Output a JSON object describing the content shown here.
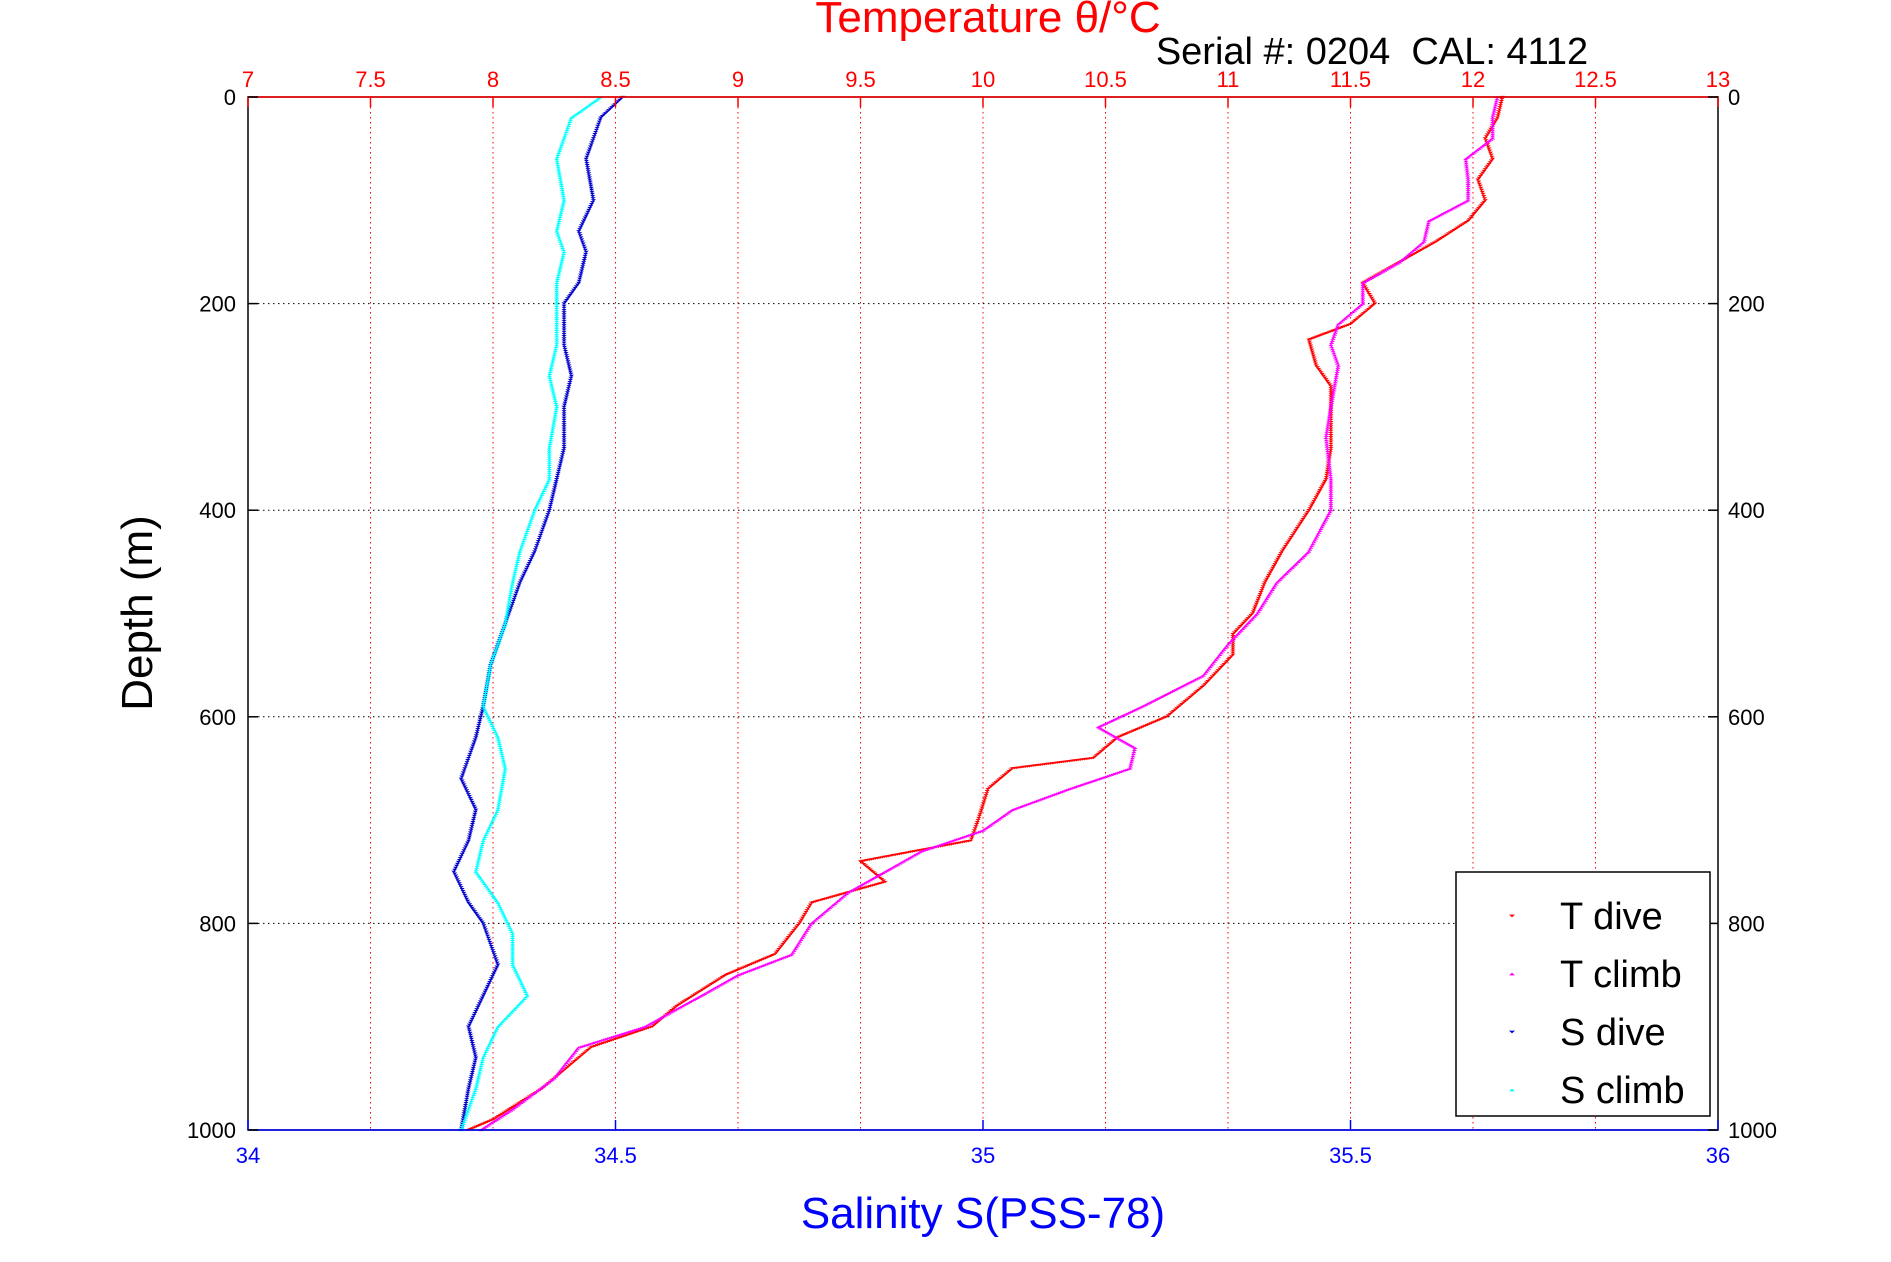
{
  "chart_data": {
    "type": "scatter",
    "title": "Temperature θ/°C",
    "subtitle": "Serial #: 0204  CAL: 4112",
    "xlabel_top": "Temperature θ/°C",
    "xlabel_bottom": "Salinity S(PSS-78)",
    "ylabel": "Depth (m)",
    "temperature_axis": {
      "range": [
        7,
        13
      ],
      "ticks": [
        "7",
        "7.5",
        "8",
        "8.5",
        "9",
        "9.5",
        "10",
        "10.5",
        "11",
        "11.5",
        "12",
        "12.5",
        "13"
      ],
      "color": "#ff0000"
    },
    "salinity_axis": {
      "range": [
        34,
        36
      ],
      "ticks": [
        "34",
        "34.5",
        "35",
        "35.5",
        "36"
      ],
      "color": "#0000ff"
    },
    "depth_axis": {
      "range": [
        0,
        1000
      ],
      "reversed": true,
      "ticks": [
        "0",
        "200",
        "400",
        "600",
        "800",
        "1000"
      ]
    },
    "grid": true,
    "legend": {
      "placement": "bottom-right"
    },
    "series": [
      {
        "name": "T dive",
        "axis": "temperature",
        "color": "#ff0000",
        "marker": "triangle-down",
        "points": [
          [
            12.12,
            0
          ],
          [
            12.1,
            20
          ],
          [
            12.05,
            40
          ],
          [
            12.08,
            60
          ],
          [
            12.02,
            80
          ],
          [
            12.05,
            100
          ],
          [
            11.98,
            120
          ],
          [
            11.85,
            140
          ],
          [
            11.7,
            160
          ],
          [
            11.55,
            180
          ],
          [
            11.6,
            200
          ],
          [
            11.5,
            220
          ],
          [
            11.33,
            235
          ],
          [
            11.36,
            260
          ],
          [
            11.42,
            280
          ],
          [
            11.42,
            300
          ],
          [
            11.42,
            340
          ],
          [
            11.4,
            370
          ],
          [
            11.33,
            400
          ],
          [
            11.22,
            440
          ],
          [
            11.15,
            470
          ],
          [
            11.1,
            500
          ],
          [
            11.02,
            520
          ],
          [
            11.02,
            540
          ],
          [
            10.9,
            570
          ],
          [
            10.75,
            600
          ],
          [
            10.55,
            620
          ],
          [
            10.45,
            640
          ],
          [
            10.12,
            650
          ],
          [
            10.02,
            670
          ],
          [
            9.98,
            700
          ],
          [
            9.95,
            720
          ],
          [
            9.5,
            740
          ],
          [
            9.6,
            760
          ],
          [
            9.3,
            780
          ],
          [
            9.25,
            800
          ],
          [
            9.15,
            830
          ],
          [
            8.95,
            850
          ],
          [
            8.75,
            880
          ],
          [
            8.65,
            900
          ],
          [
            8.4,
            920
          ],
          [
            8.2,
            960
          ],
          [
            8.0,
            990
          ],
          [
            7.9,
            1000
          ]
        ]
      },
      {
        "name": "T climb",
        "axis": "temperature",
        "color": "#ff00ff",
        "marker": "triangle-up",
        "points": [
          [
            12.1,
            0
          ],
          [
            12.08,
            20
          ],
          [
            12.08,
            40
          ],
          [
            11.97,
            60
          ],
          [
            11.98,
            80
          ],
          [
            11.98,
            100
          ],
          [
            11.82,
            120
          ],
          [
            11.8,
            140
          ],
          [
            11.7,
            160
          ],
          [
            11.55,
            180
          ],
          [
            11.55,
            200
          ],
          [
            11.45,
            220
          ],
          [
            11.42,
            240
          ],
          [
            11.45,
            260
          ],
          [
            11.42,
            300
          ],
          [
            11.4,
            330
          ],
          [
            11.42,
            370
          ],
          [
            11.42,
            400
          ],
          [
            11.33,
            440
          ],
          [
            11.2,
            470
          ],
          [
            11.12,
            500
          ],
          [
            11.0,
            530
          ],
          [
            10.9,
            560
          ],
          [
            10.65,
            590
          ],
          [
            10.47,
            610
          ],
          [
            10.62,
            630
          ],
          [
            10.6,
            650
          ],
          [
            10.35,
            670
          ],
          [
            10.12,
            690
          ],
          [
            10.0,
            710
          ],
          [
            9.75,
            730
          ],
          [
            9.6,
            750
          ],
          [
            9.45,
            770
          ],
          [
            9.3,
            800
          ],
          [
            9.22,
            830
          ],
          [
            9.0,
            850
          ],
          [
            8.85,
            870
          ],
          [
            8.62,
            900
          ],
          [
            8.35,
            920
          ],
          [
            8.25,
            950
          ],
          [
            8.08,
            980
          ],
          [
            7.95,
            1000
          ]
        ]
      },
      {
        "name": "S dive",
        "axis": "salinity",
        "color": "#0000cc",
        "marker": "triangle-down",
        "points": [
          [
            34.51,
            0
          ],
          [
            34.48,
            20
          ],
          [
            34.46,
            60
          ],
          [
            34.47,
            100
          ],
          [
            34.45,
            130
          ],
          [
            34.46,
            150
          ],
          [
            34.45,
            180
          ],
          [
            34.43,
            200
          ],
          [
            34.43,
            240
          ],
          [
            34.44,
            270
          ],
          [
            34.43,
            300
          ],
          [
            34.43,
            340
          ],
          [
            34.42,
            370
          ],
          [
            34.41,
            400
          ],
          [
            34.39,
            440
          ],
          [
            34.37,
            470
          ],
          [
            34.35,
            510
          ],
          [
            34.33,
            550
          ],
          [
            34.32,
            590
          ],
          [
            34.31,
            620
          ],
          [
            34.29,
            660
          ],
          [
            34.31,
            690
          ],
          [
            34.3,
            720
          ],
          [
            34.28,
            750
          ],
          [
            34.3,
            780
          ],
          [
            34.32,
            800
          ],
          [
            34.34,
            840
          ],
          [
            34.32,
            870
          ],
          [
            34.3,
            900
          ],
          [
            34.31,
            930
          ],
          [
            34.3,
            960
          ],
          [
            34.29,
            1000
          ]
        ]
      },
      {
        "name": "S climb",
        "axis": "salinity",
        "color": "#00ffff",
        "marker": "triangle-up",
        "points": [
          [
            34.48,
            0
          ],
          [
            34.44,
            20
          ],
          [
            34.42,
            60
          ],
          [
            34.43,
            100
          ],
          [
            34.42,
            130
          ],
          [
            34.43,
            150
          ],
          [
            34.42,
            180
          ],
          [
            34.42,
            200
          ],
          [
            34.42,
            240
          ],
          [
            34.41,
            270
          ],
          [
            34.42,
            300
          ],
          [
            34.41,
            340
          ],
          [
            34.41,
            370
          ],
          [
            34.39,
            400
          ],
          [
            34.37,
            440
          ],
          [
            34.36,
            470
          ],
          [
            34.35,
            510
          ],
          [
            34.33,
            550
          ],
          [
            34.32,
            590
          ],
          [
            34.34,
            620
          ],
          [
            34.35,
            650
          ],
          [
            34.34,
            690
          ],
          [
            34.32,
            720
          ],
          [
            34.31,
            750
          ],
          [
            34.34,
            780
          ],
          [
            34.36,
            810
          ],
          [
            34.36,
            840
          ],
          [
            34.38,
            870
          ],
          [
            34.34,
            900
          ],
          [
            34.32,
            930
          ],
          [
            34.31,
            960
          ],
          [
            34.29,
            1000
          ]
        ]
      }
    ]
  }
}
